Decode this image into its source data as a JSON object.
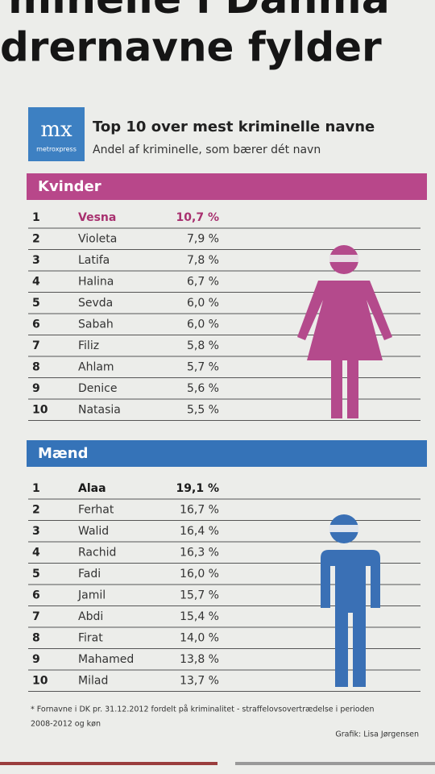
{
  "headline": {
    "line1": "minelle i Danma",
    "line2": "drernavne fylder"
  },
  "logo": {
    "mark": "mx",
    "brand": "metroxpress"
  },
  "graphic": {
    "title": "Top 10 over mest kriminelle navne",
    "subtitle": "Andel af kriminelle, som bærer dét navn"
  },
  "sections": [
    {
      "heading": "Kvinder",
      "rows": [
        [
          "1",
          "Vesna",
          "10,7 %"
        ],
        [
          "2",
          "Violeta",
          "7,9 %"
        ],
        [
          "3",
          "Latifa",
          "7,8 %"
        ],
        [
          "4",
          "Halina",
          "6,7 %"
        ],
        [
          "5",
          "Sevda",
          "6,0 %"
        ],
        [
          "6",
          "Sabah",
          "6,0 %"
        ],
        [
          "7",
          "Filiz",
          "5,8 %"
        ],
        [
          "8",
          "Ahlam",
          "5,7 %"
        ],
        [
          "9",
          "Denice",
          "5,6 %"
        ],
        [
          "10",
          "Natasia",
          "5,5 %"
        ]
      ]
    },
    {
      "heading": "Mænd",
      "rows": [
        [
          "1",
          "Alaa",
          "19,1 %"
        ],
        [
          "2",
          "Ferhat",
          "16,7 %"
        ],
        [
          "3",
          "Walid",
          "16,4 %"
        ],
        [
          "4",
          "Rachid",
          "16,3 %"
        ],
        [
          "5",
          "Fadi",
          "16,0 %"
        ],
        [
          "6",
          "Jamil",
          "15,7 %"
        ],
        [
          "7",
          "Abdi",
          "15,4 %"
        ],
        [
          "8",
          "Firat",
          "14,0 %"
        ],
        [
          "9",
          "Mahamed",
          "13,8 %"
        ],
        [
          "10",
          "Milad",
          "13,7 %"
        ]
      ]
    }
  ],
  "footnote": {
    "line1": "* Fornavne i DK pr. 31.12.2012 fordelt på kriminalitet - straffelovsovertrædelse i perioden",
    "line2": "2008-2012 og køn"
  },
  "credit": "Grafik: Lisa Jørgensen"
}
